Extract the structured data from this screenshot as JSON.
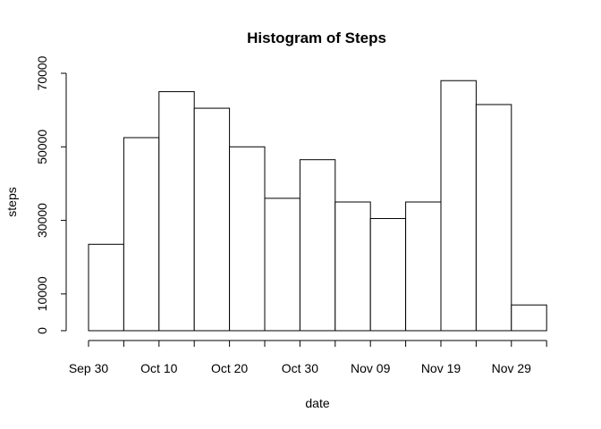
{
  "chart_data": {
    "type": "bar",
    "title": "Histogram of Steps",
    "xlabel": "date",
    "ylabel": "steps",
    "ylim": [
      0,
      70000
    ],
    "y_ticks": [
      0,
      10000,
      30000,
      50000,
      70000
    ],
    "x_tick_labels": [
      "Sep 30",
      "Oct 10",
      "Oct 20",
      "Oct 30",
      "Nov 09",
      "Nov 19",
      "Nov 29"
    ],
    "bins": [
      {
        "start": "Sep 30",
        "end": "Oct 05",
        "value": 23500
      },
      {
        "start": "Oct 05",
        "end": "Oct 10",
        "value": 52500
      },
      {
        "start": "Oct 10",
        "end": "Oct 15",
        "value": 65000
      },
      {
        "start": "Oct 15",
        "end": "Oct 20",
        "value": 60500
      },
      {
        "start": "Oct 20",
        "end": "Oct 25",
        "value": 50000
      },
      {
        "start": "Oct 25",
        "end": "Oct 30",
        "value": 36000
      },
      {
        "start": "Oct 30",
        "end": "Nov 04",
        "value": 46500
      },
      {
        "start": "Nov 04",
        "end": "Nov 09",
        "value": 35000
      },
      {
        "start": "Nov 09",
        "end": "Nov 14",
        "value": 30500
      },
      {
        "start": "Nov 14",
        "end": "Nov 19",
        "value": 35000
      },
      {
        "start": "Nov 19",
        "end": "Nov 24",
        "value": 68000
      },
      {
        "start": "Nov 24",
        "end": "Nov 29",
        "value": 61500
      },
      {
        "start": "Nov 29",
        "end": "Dec 04",
        "value": 7000
      }
    ],
    "grid": false,
    "legend": "none",
    "colors": {
      "bar_fill": "#ffffff",
      "bar_stroke": "#000000",
      "text": "#000000"
    }
  }
}
